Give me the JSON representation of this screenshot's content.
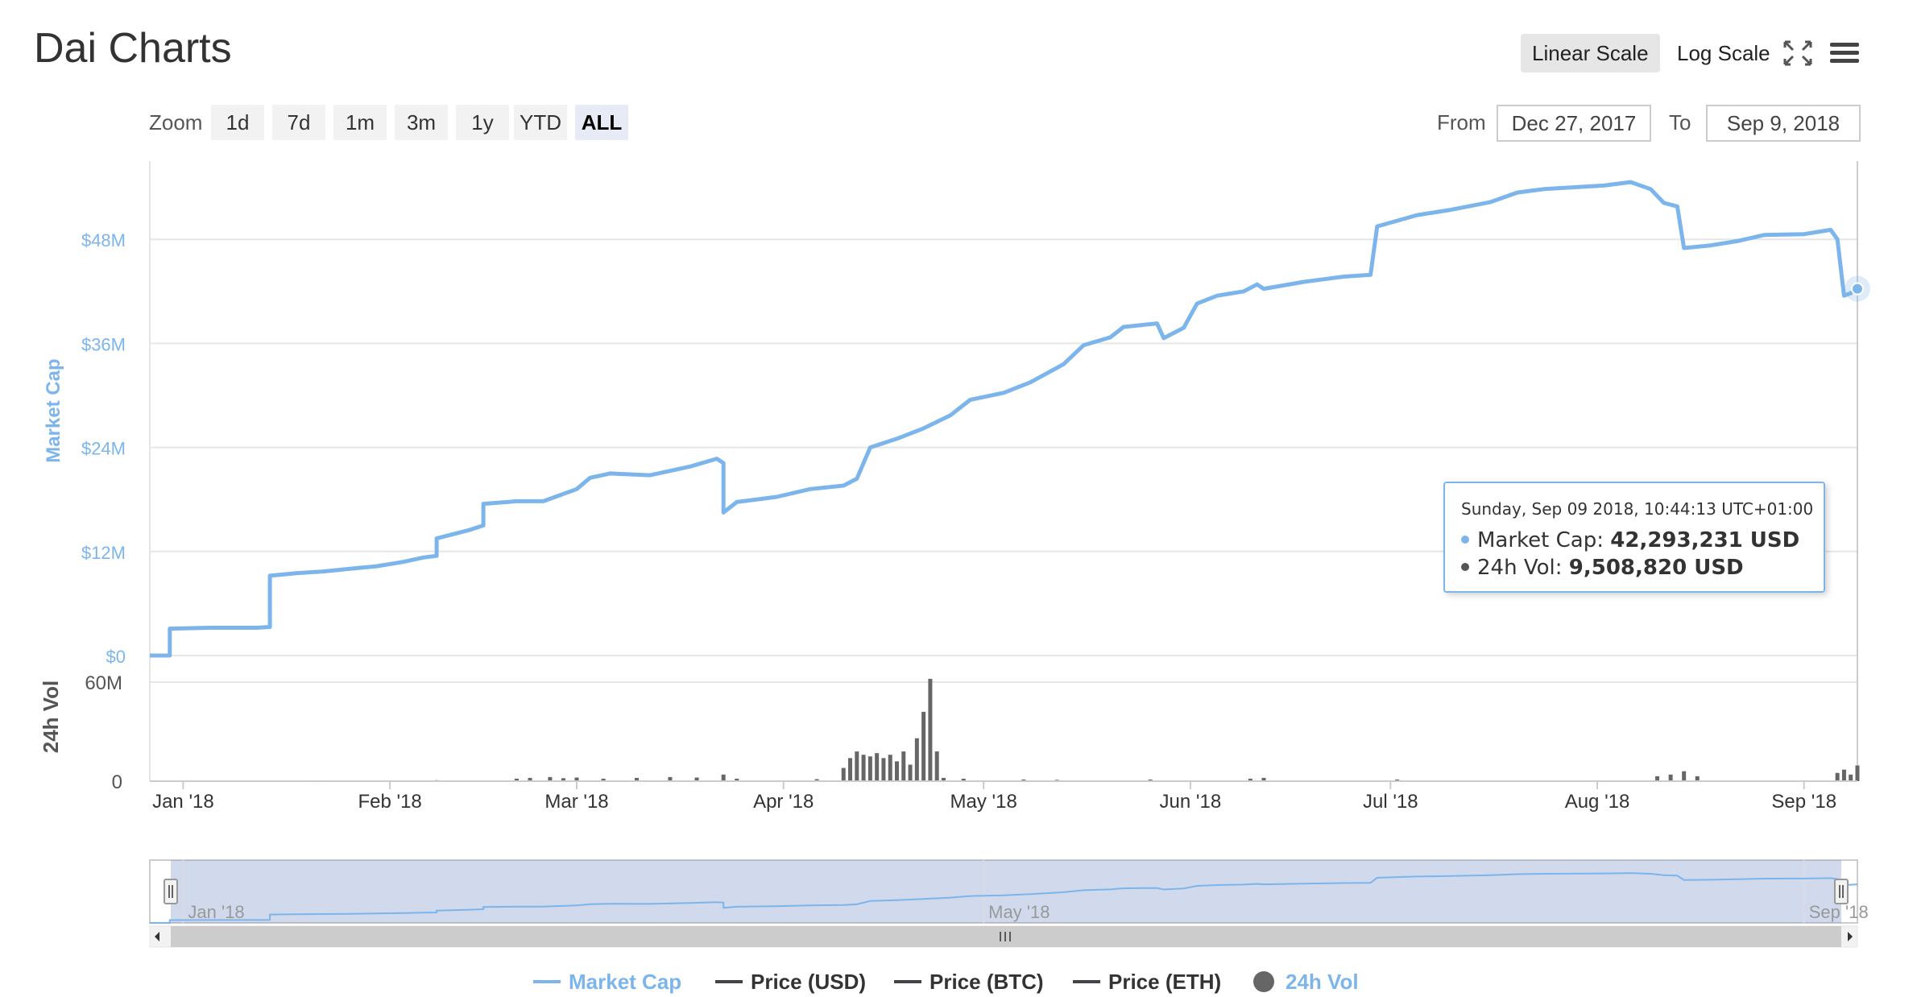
{
  "page": {
    "title": "Dai Charts",
    "scale_buttons": [
      {
        "label": "Linear Scale",
        "active": true
      },
      {
        "label": "Log Scale",
        "active": false
      }
    ],
    "icons": [
      "fullscreen-icon",
      "menu-icon"
    ],
    "zoom": {
      "label": "Zoom",
      "buttons": [
        "1d",
        "7d",
        "1m",
        "3m",
        "1y",
        "YTD",
        "ALL"
      ],
      "active": "ALL"
    },
    "range": {
      "from_label": "From",
      "from_value": "Dec 27, 2017",
      "to_label": "To",
      "to_value": "Sep 9, 2018"
    }
  },
  "tooltip": {
    "date": "Sunday, Sep 09 2018, 10:44:13 UTC+01:00",
    "market_cap_label": "Market Cap:",
    "market_cap_value": "42,293,231 USD",
    "vol_label": "24h Vol:",
    "vol_value": "9,508,820 USD",
    "market_cap_color": "#7cb5ec",
    "vol_color": "#555555"
  },
  "legend": [
    {
      "name": "Market Cap",
      "color": "#7cb5ec",
      "kind": "line",
      "active": true
    },
    {
      "name": "Price (USD)",
      "color": "#434348",
      "kind": "line",
      "active": false
    },
    {
      "name": "Price (BTC)",
      "color": "#434348",
      "kind": "line",
      "active": false
    },
    {
      "name": "Price (ETH)",
      "color": "#434348",
      "kind": "line",
      "active": false
    },
    {
      "name": "24h Vol",
      "color": "#7cb5ec",
      "dot_color": "#666666",
      "kind": "dot",
      "active": true
    }
  ],
  "chart_data": {
    "type": "line",
    "x_start": "2017-12-27",
    "x_end": "2018-09-09",
    "x_tick_labels": [
      {
        "date": "2018-01-01",
        "label": "Jan '18"
      },
      {
        "date": "2018-02-01",
        "label": "Feb '18"
      },
      {
        "date": "2018-03-01",
        "label": "Mar '18"
      },
      {
        "date": "2018-04-01",
        "label": "Apr '18"
      },
      {
        "date": "2018-05-01",
        "label": "May '18"
      },
      {
        "date": "2018-06-01",
        "label": "Jun '18"
      },
      {
        "date": "2018-07-01",
        "label": "Jul '18"
      },
      {
        "date": "2018-08-01",
        "label": "Aug '18"
      },
      {
        "date": "2018-09-01",
        "label": "Sep '18"
      }
    ],
    "market_cap": {
      "name": "Market Cap",
      "color": "#7cb5ec",
      "ylabel": "Market Cap",
      "ylim": [
        0,
        60000000
      ],
      "y_ticks": [
        0,
        12000000,
        24000000,
        36000000,
        48000000
      ],
      "y_tick_labels": [
        "$0",
        "$12M",
        "$24M",
        "$36M",
        "$48M"
      ],
      "points": [
        [
          "2017-12-27",
          0
        ],
        [
          "2017-12-30",
          0
        ],
        [
          "2017-12-30",
          3100000
        ],
        [
          "2018-01-05",
          3200000
        ],
        [
          "2018-01-12",
          3200000
        ],
        [
          "2018-01-14",
          3300000
        ],
        [
          "2018-01-14",
          9200000
        ],
        [
          "2018-01-18",
          9500000
        ],
        [
          "2018-01-22",
          9700000
        ],
        [
          "2018-01-26",
          10000000
        ],
        [
          "2018-01-30",
          10300000
        ],
        [
          "2018-02-03",
          10800000
        ],
        [
          "2018-02-06",
          11300000
        ],
        [
          "2018-02-08",
          11500000
        ],
        [
          "2018-02-08",
          13500000
        ],
        [
          "2018-02-13",
          14500000
        ],
        [
          "2018-02-15",
          15000000
        ],
        [
          "2018-02-15",
          17500000
        ],
        [
          "2018-02-20",
          17800000
        ],
        [
          "2018-02-24",
          17800000
        ],
        [
          "2018-03-01",
          19200000
        ],
        [
          "2018-03-03",
          20500000
        ],
        [
          "2018-03-06",
          21000000
        ],
        [
          "2018-03-12",
          20800000
        ],
        [
          "2018-03-18",
          21800000
        ],
        [
          "2018-03-22",
          22700000
        ],
        [
          "2018-03-23",
          22200000
        ],
        [
          "2018-03-23",
          16500000
        ],
        [
          "2018-03-25",
          17700000
        ],
        [
          "2018-03-31",
          18300000
        ],
        [
          "2018-04-05",
          19200000
        ],
        [
          "2018-04-10",
          19600000
        ],
        [
          "2018-04-12",
          20400000
        ],
        [
          "2018-04-14",
          24000000
        ],
        [
          "2018-04-18",
          25000000
        ],
        [
          "2018-04-22",
          26200000
        ],
        [
          "2018-04-26",
          27700000
        ],
        [
          "2018-04-29",
          29500000
        ],
        [
          "2018-05-04",
          30300000
        ],
        [
          "2018-05-08",
          31500000
        ],
        [
          "2018-05-13",
          33600000
        ],
        [
          "2018-05-16",
          35800000
        ],
        [
          "2018-05-20",
          36700000
        ],
        [
          "2018-05-22",
          37900000
        ],
        [
          "2018-05-27",
          38300000
        ],
        [
          "2018-05-28",
          36600000
        ],
        [
          "2018-05-31",
          37800000
        ],
        [
          "2018-06-02",
          40600000
        ],
        [
          "2018-06-05",
          41500000
        ],
        [
          "2018-06-09",
          42000000
        ],
        [
          "2018-06-11",
          42800000
        ],
        [
          "2018-06-12",
          42300000
        ],
        [
          "2018-06-18",
          43100000
        ],
        [
          "2018-06-24",
          43700000
        ],
        [
          "2018-06-28",
          43900000
        ],
        [
          "2018-06-29",
          49500000
        ],
        [
          "2018-07-05",
          50800000
        ],
        [
          "2018-07-10",
          51400000
        ],
        [
          "2018-07-16",
          52300000
        ],
        [
          "2018-07-20",
          53400000
        ],
        [
          "2018-07-24",
          53800000
        ],
        [
          "2018-08-02",
          54200000
        ],
        [
          "2018-08-06",
          54600000
        ],
        [
          "2018-08-09",
          53800000
        ],
        [
          "2018-08-11",
          52200000
        ],
        [
          "2018-08-13",
          51800000
        ],
        [
          "2018-08-14",
          47000000
        ],
        [
          "2018-08-18",
          47300000
        ],
        [
          "2018-08-22",
          47800000
        ],
        [
          "2018-08-26",
          48500000
        ],
        [
          "2018-09-01",
          48600000
        ],
        [
          "2018-09-05",
          49100000
        ],
        [
          "2018-09-06",
          48000000
        ],
        [
          "2018-09-07",
          41500000
        ],
        [
          "2018-09-08",
          41800000
        ],
        [
          "2018-09-09",
          42300000
        ]
      ]
    },
    "volume": {
      "name": "24h Vol",
      "color": "#666666",
      "ylabel": "24h Vol",
      "ylim": [
        0,
        80000000
      ],
      "y_ticks": [
        0,
        60000000
      ],
      "y_tick_labels": [
        "0",
        "60M"
      ],
      "points": [
        [
          "2018-01-21",
          500000
        ],
        [
          "2018-02-08",
          600000
        ],
        [
          "2018-02-20",
          1500000
        ],
        [
          "2018-02-22",
          2000000
        ],
        [
          "2018-02-25",
          2500000
        ],
        [
          "2018-02-27",
          1800000
        ],
        [
          "2018-03-01",
          2200000
        ],
        [
          "2018-03-05",
          1500000
        ],
        [
          "2018-03-10",
          2000000
        ],
        [
          "2018-03-15",
          2500000
        ],
        [
          "2018-03-19",
          2200000
        ],
        [
          "2018-03-23",
          4000000
        ],
        [
          "2018-03-25",
          1500000
        ],
        [
          "2018-04-06",
          1200000
        ],
        [
          "2018-04-10",
          8000000
        ],
        [
          "2018-04-11",
          14000000
        ],
        [
          "2018-04-12",
          18000000
        ],
        [
          "2018-04-13",
          16000000
        ],
        [
          "2018-04-14",
          15000000
        ],
        [
          "2018-04-15",
          17000000
        ],
        [
          "2018-04-16",
          14000000
        ],
        [
          "2018-04-17",
          16000000
        ],
        [
          "2018-04-18",
          12000000
        ],
        [
          "2018-04-19",
          18000000
        ],
        [
          "2018-04-20",
          10000000
        ],
        [
          "2018-04-21",
          26000000
        ],
        [
          "2018-04-22",
          42000000
        ],
        [
          "2018-04-23",
          62000000
        ],
        [
          "2018-04-24",
          18000000
        ],
        [
          "2018-04-25",
          2000000
        ],
        [
          "2018-04-28",
          1500000
        ],
        [
          "2018-05-07",
          1000000
        ],
        [
          "2018-05-12",
          800000
        ],
        [
          "2018-05-26",
          1000000
        ],
        [
          "2018-06-10",
          1500000
        ],
        [
          "2018-06-12",
          2000000
        ],
        [
          "2018-07-02",
          1000000
        ],
        [
          "2018-08-10",
          3000000
        ],
        [
          "2018-08-12",
          4000000
        ],
        [
          "2018-08-14",
          6000000
        ],
        [
          "2018-08-16",
          3000000
        ],
        [
          "2018-09-06",
          5000000
        ],
        [
          "2018-09-07",
          7000000
        ],
        [
          "2018-09-08",
          4000000
        ],
        [
          "2018-09-09",
          9508820
        ]
      ]
    },
    "navigator": {
      "x_tick_labels": [
        {
          "date": "2018-01-01",
          "label": "Jan '18"
        },
        {
          "date": "2018-05-01",
          "label": "May '18"
        },
        {
          "date": "2018-09-01",
          "label": "Sep '18"
        }
      ]
    },
    "grid": true,
    "legend_position": "bottom"
  }
}
